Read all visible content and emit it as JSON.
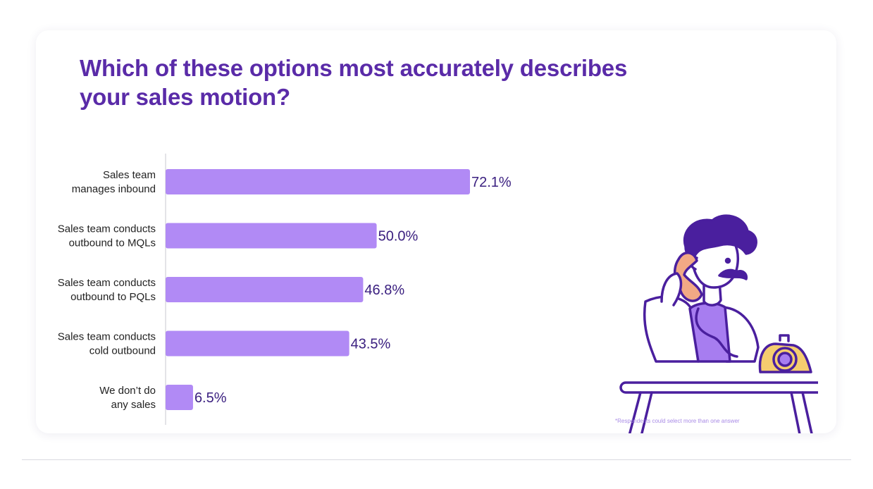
{
  "title": "Which of these options most accurately describes your sales motion?",
  "footnote": "*Respondents could select more than one answer",
  "colors": {
    "bar": "#b18af5",
    "title": "#5a2ba8",
    "value_text": "#3b2080",
    "illustration_stroke": "#4a1f9e",
    "shirt": "#a77df0",
    "phone_body": "#f5cd6f",
    "handset": "#f2a985"
  },
  "illustration": {
    "name": "man-on-telephone-illustration"
  },
  "chart_data": {
    "type": "bar",
    "orientation": "horizontal",
    "categories": [
      [
        "Sales team",
        "manages inbound"
      ],
      [
        "Sales team conducts",
        "outbound to MQLs"
      ],
      [
        "Sales team conducts",
        "outbound to PQLs"
      ],
      [
        "Sales team conducts",
        "cold outbound"
      ],
      [
        "We don’t do",
        "any sales"
      ]
    ],
    "values": [
      72.1,
      50.0,
      46.8,
      43.5,
      6.5
    ],
    "value_labels": [
      "72.1%",
      "50.0%",
      "46.8%",
      "43.5%",
      "6.5%"
    ],
    "unit": "%",
    "xlim": [
      0,
      100
    ],
    "grid": false,
    "legend": "none",
    "title": "Which of these options most accurately describes your sales motion?",
    "xlabel": "",
    "ylabel": ""
  }
}
